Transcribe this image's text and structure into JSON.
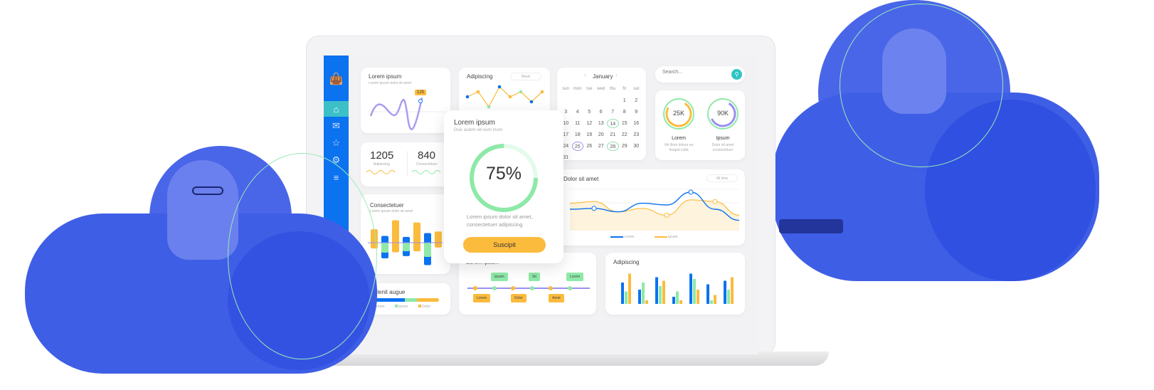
{
  "colors": {
    "blue": "#0b72f0",
    "green": "#8ee9a8",
    "orange": "#fbbb3c",
    "purple": "#9a8ff0",
    "teal": "#2fc4c4"
  },
  "sidebar": {
    "icons": [
      "wallet-icon",
      "home-icon",
      "chat-icon",
      "star-icon",
      "gear-icon",
      "menu-icon"
    ],
    "active": "home-icon"
  },
  "card_wave": {
    "title": "Lorem ipsum",
    "subtitle": "Lorem ipsum dolor sit amet",
    "badge": "125"
  },
  "card_line": {
    "title": "Adipiscing",
    "filter": "Week",
    "values": [
      3,
      4,
      1,
      5,
      3,
      4,
      2,
      4
    ]
  },
  "calendar": {
    "month": "January",
    "days": [
      "sun",
      "mon",
      "tue",
      "wed",
      "thu",
      "fri",
      "sat"
    ],
    "start_offset": 5,
    "count": 31,
    "green_days": [
      14,
      28
    ],
    "purple_days": [
      25
    ]
  },
  "search": {
    "placeholder": "Search..."
  },
  "rings": [
    {
      "value": "25K",
      "label": "Lorem",
      "desc": "Vel illum dolore eu feugiat nulla",
      "progress": 0.75
    },
    {
      "value": "90K",
      "label": "Ipsum",
      "desc": "Dolor sit amet consectetuer",
      "progress": 0.6
    }
  ],
  "stats": [
    {
      "value": "1205",
      "label": "Adipiscing"
    },
    {
      "value": "840",
      "label": "Consectetuer"
    }
  ],
  "card_bars": {
    "title": "Consectetuer",
    "subtitle": "Lorem ipsum dolor sit amet",
    "values": [
      3,
      -3.5,
      5,
      -3,
      4.5,
      -5,
      2.5
    ]
  },
  "card_progress": {
    "title": "Delenit augue",
    "legend": [
      "Lorem",
      "Ipsum",
      "Dolor"
    ],
    "shares": [
      0.5,
      0.18,
      0.32
    ]
  },
  "popup": {
    "title": "Lorem ipsum",
    "subtitle": "Duis autem vel eum iriure",
    "percent": "75%",
    "progress": 0.75,
    "text1": "Lorem ipsum dolor sit amet,",
    "text2": "consectetuer adipiscing",
    "button": "Suscipit"
  },
  "card_area": {
    "title": "Dolor sit amet",
    "filter": "All time",
    "legend": [
      "Lorem",
      "Ipsum"
    ],
    "lorem": [
      2.5,
      2.6,
      2.2,
      3.2,
      3.0,
      4.5,
      2.5,
      1.2
    ],
    "ipsum": [
      3.2,
      3.4,
      2.2,
      2.6,
      1.8,
      3.6,
      3.4,
      1.8
    ]
  },
  "card_timeline": {
    "title": "Lorem ipsum",
    "top": [
      "Ipsum",
      "Sit",
      "Lorem"
    ],
    "bottom": [
      "Lorem",
      "Dolor",
      "Amet"
    ]
  },
  "card_group": {
    "title": "Adipiscing",
    "series": [
      [
        60,
        40,
        75,
        20,
        85,
        55,
        65
      ],
      [
        35,
        60,
        50,
        35,
        70,
        10,
        40
      ],
      [
        85,
        10,
        65,
        10,
        40,
        25,
        75
      ]
    ]
  }
}
